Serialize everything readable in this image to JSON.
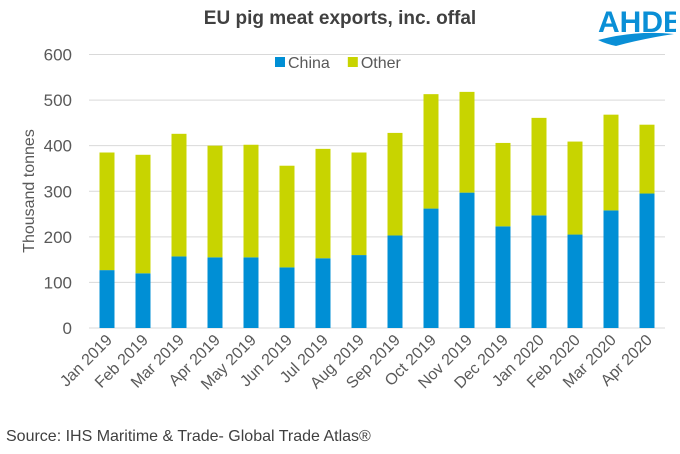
{
  "logo_text": "AHDB",
  "source": "Source: IHS Maritime & Trade- Global Trade Atlas®",
  "colors": {
    "china": "#008fd5",
    "other": "#c8d400",
    "grid": "#d9d9d9",
    "text": "#595959"
  },
  "chart_data": {
    "type": "bar",
    "stacked": true,
    "title": "EU pig meat exports, inc. offal",
    "xlabel": "",
    "ylabel": "Thousand tonnes",
    "ylim": [
      0,
      600
    ],
    "yticks": [
      0,
      100,
      200,
      300,
      400,
      500,
      600
    ],
    "grid": true,
    "legend_position": "top-center",
    "categories": [
      "Jan 2019",
      "Feb 2019",
      "Mar 2019",
      "Apr 2019",
      "May 2019",
      "Jun 2019",
      "Jul 2019",
      "Aug 2019",
      "Sep 2019",
      "Oct 2019",
      "Nov 2019",
      "Dec 2019",
      "Jan 2020",
      "Feb 2020",
      "Mar 2020",
      "Apr 2020"
    ],
    "series": [
      {
        "name": "China",
        "values": [
          127,
          120,
          157,
          155,
          155,
          133,
          153,
          160,
          203,
          262,
          297,
          223,
          247,
          205,
          258,
          295
        ]
      },
      {
        "name": "Other",
        "values": [
          258,
          260,
          269,
          245,
          247,
          223,
          240,
          225,
          225,
          251,
          221,
          183,
          214,
          204,
          210,
          151
        ]
      }
    ]
  }
}
